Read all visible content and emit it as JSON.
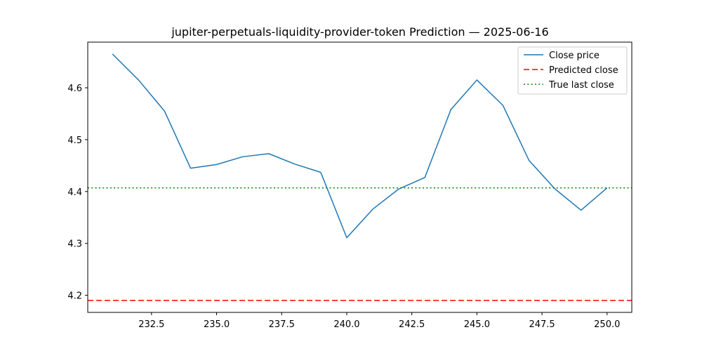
{
  "chart_data": {
    "type": "line",
    "title": "jupiter-perpetuals-liquidity-provider-token Prediction — 2025-06-16",
    "xlabel": "",
    "ylabel": "",
    "xlim": [
      230.05,
      250.95
    ],
    "ylim": [
      4.167,
      4.688
    ],
    "x_ticks": [
      232.5,
      235.0,
      237.5,
      240.0,
      242.5,
      245.0,
      247.5,
      250.0
    ],
    "x_tick_labels": [
      "232.5",
      "235.0",
      "237.5",
      "240.0",
      "242.5",
      "245.0",
      "247.5",
      "250.0"
    ],
    "y_ticks": [
      4.2,
      4.3,
      4.4,
      4.5,
      4.6
    ],
    "y_tick_labels": [
      "4.2",
      "4.3",
      "4.4",
      "4.5",
      "4.6"
    ],
    "grid": false,
    "legend_position": "top-right",
    "series": [
      {
        "name": "Close price",
        "style": "solid",
        "color": "#1f77b4",
        "x": [
          231,
          232,
          233,
          234,
          235,
          236,
          237,
          238,
          239,
          240,
          241,
          242,
          243,
          244,
          245,
          246,
          247,
          248,
          249,
          250
        ],
        "y": [
          4.665,
          4.615,
          4.555,
          4.445,
          4.452,
          4.467,
          4.473,
          4.453,
          4.437,
          4.311,
          4.366,
          4.405,
          4.427,
          4.558,
          4.615,
          4.566,
          4.46,
          4.405,
          4.364,
          4.407
        ]
      },
      {
        "name": "Predicted close",
        "style": "dashed",
        "color": "#ff0000",
        "hline": 4.19
      },
      {
        "name": "True last close",
        "style": "dotted",
        "color": "#008000",
        "hline": 4.407
      }
    ]
  }
}
